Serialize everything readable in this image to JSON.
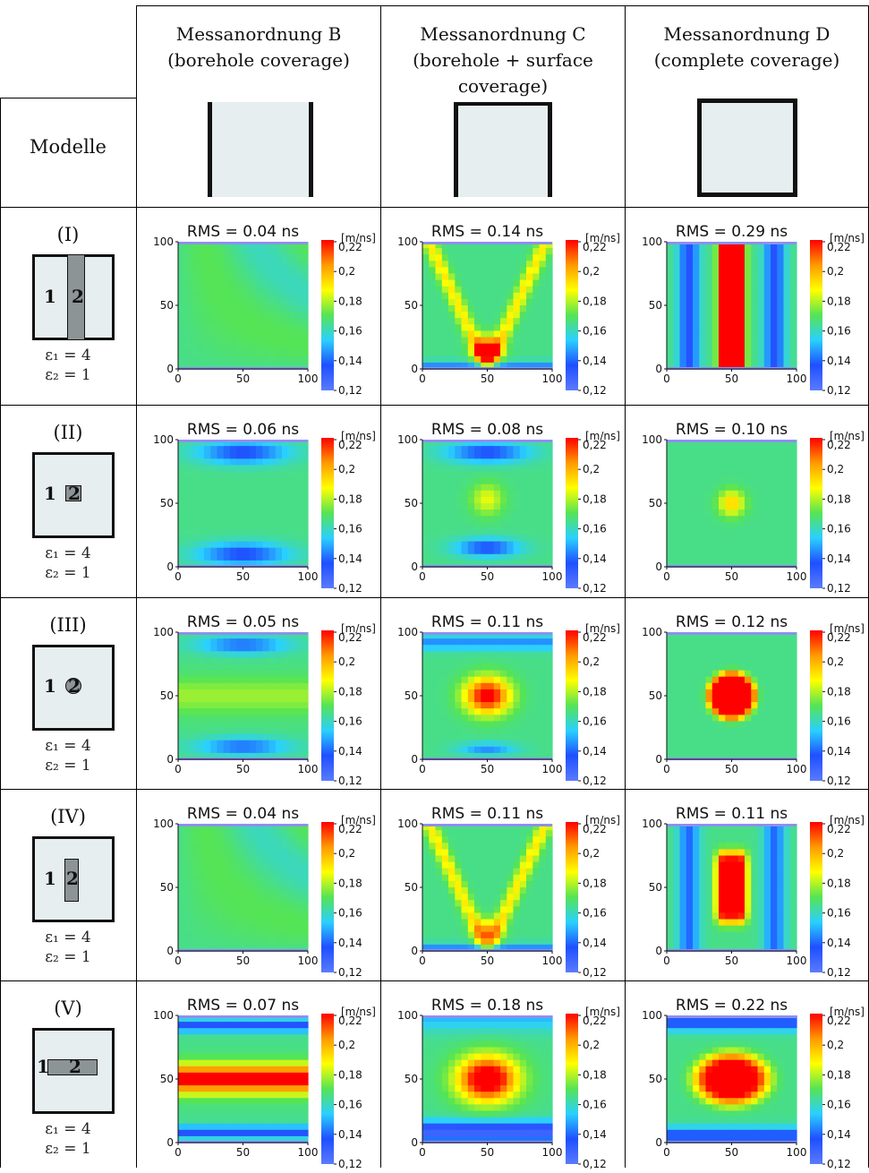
{
  "header": {
    "columns": [
      {
        "title_line1": "Messanordnung B",
        "title_line2": "(borehole coverage)",
        "title_line3": "",
        "coverage": "B"
      },
      {
        "title_line1": "Messanordnung C",
        "title_line2": "(borehole + surface",
        "title_line3": "coverage)",
        "coverage": "C"
      },
      {
        "title_line1": "Messanordnung D",
        "title_line2": "(complete coverage)",
        "title_line3": "",
        "coverage": "D"
      }
    ],
    "row_label": "Modelle"
  },
  "colorbar": {
    "unit": "[m/ns]",
    "ticks": [
      "0,22",
      "0,2",
      "0,18",
      "0,16",
      "0,14",
      "0,12"
    ],
    "range": [
      0.12,
      0.22
    ],
    "colors": [
      "#5a7bff",
      "#1f4fff",
      "#2ad0ff",
      "#55e455",
      "#ffff00",
      "#ff9a00",
      "#ff0000"
    ]
  },
  "axes": {
    "x_ticks": [
      "0",
      "50",
      "100"
    ],
    "y_ticks": [
      "100",
      "50",
      "0"
    ]
  },
  "models": [
    {
      "label": "(I)",
      "eps1": "ε₁ = 4",
      "eps2": "ε₂ = 1",
      "num1": "1",
      "num2": "2",
      "shape": "vbar",
      "rms": [
        "RMS = 0.04 ns",
        "RMS = 0.14 ns",
        "RMS = 0.29 ns"
      ]
    },
    {
      "label": "(II)",
      "eps1": "ε₁ = 4",
      "eps2": "ε₂ = 1",
      "num1": "1",
      "num2": "2",
      "shape": "square",
      "rms": [
        "RMS = 0.06 ns",
        "RMS = 0.08 ns",
        "RMS = 0.10 ns"
      ]
    },
    {
      "label": "(III)",
      "eps1": "ε₁ = 4",
      "eps2": "ε₂ = 1",
      "num1": "1",
      "num2": "2",
      "shape": "circle",
      "rms": [
        "RMS = 0.05 ns",
        "RMS = 0.11 ns",
        "RMS = 0.12 ns"
      ]
    },
    {
      "label": "(IV)",
      "eps1": "ε₁ = 4",
      "eps2": "ε₂ = 1",
      "num1": "1",
      "num2": "2",
      "shape": "rect-v",
      "rms": [
        "RMS = 0.04 ns",
        "RMS = 0.11 ns",
        "RMS = 0.11 ns"
      ]
    },
    {
      "label": "(V)",
      "eps1": "ε₁ = 4",
      "eps2": "ε₂ = 1",
      "num1": "1",
      "num2": "2",
      "shape": "rect-h",
      "rms": [
        "RMS = 0.07 ns",
        "RMS = 0.18 ns",
        "RMS = 0.22 ns"
      ]
    }
  ]
}
